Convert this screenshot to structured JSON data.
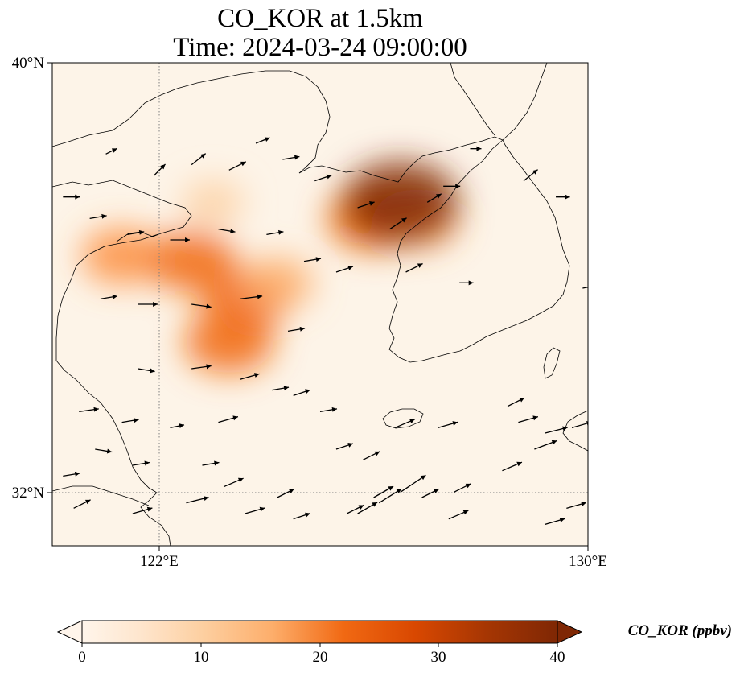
{
  "title": {
    "line1": "CO_KOR at 1.5km",
    "line2": "Time: 2024-03-24 09:00:00"
  },
  "axes": {
    "lat_ticks": [
      "40°N",
      "32°N"
    ],
    "lon_ticks": [
      "122°E",
      "130°E"
    ],
    "lon_range": [
      120,
      130
    ],
    "lat_range": [
      31,
      40
    ],
    "gridlines": "dotted at 122°E and 32°N"
  },
  "colorbar": {
    "label": "CO_KOR (ppbv)",
    "ticks": [
      "0",
      "10",
      "20",
      "30",
      "40"
    ],
    "min": 0,
    "max": 40,
    "extend": "both",
    "colormap": [
      "#fff5eb",
      "#fee6ce",
      "#fdd0a2",
      "#fdae6b",
      "#fd8d3c",
      "#f16913",
      "#d94801",
      "#a63603",
      "#7f2704"
    ]
  },
  "colors": {
    "background": "#fdf4e8",
    "coastline": "#000000",
    "gridline": "#7f7f7f",
    "arrow": "#000000"
  },
  "plumes": [
    {
      "lon": 121.3,
      "lat": 36.4,
      "value": 20
    },
    {
      "lon": 122.6,
      "lat": 36.3,
      "value": 24
    },
    {
      "lon": 123.6,
      "lat": 35.6,
      "value": 24
    },
    {
      "lon": 123.3,
      "lat": 34.8,
      "value": 25
    },
    {
      "lon": 124.2,
      "lat": 35.9,
      "value": 16
    },
    {
      "lon": 123.0,
      "lat": 37.4,
      "value": 10
    },
    {
      "lon": 126.0,
      "lat": 37.1,
      "value": 27
    },
    {
      "lon": 126.8,
      "lat": 37.1,
      "value": 22
    },
    {
      "lon": 126.5,
      "lat": 37.4,
      "value": 40
    }
  ],
  "wind_vectors": [
    [
      120.2,
      37.5,
      0.3,
      0
    ],
    [
      121.0,
      38.3,
      0.2,
      0.1
    ],
    [
      121.9,
      37.9,
      0.2,
      0.2
    ],
    [
      122.6,
      38.1,
      0.25,
      0.2
    ],
    [
      123.3,
      38.0,
      0.3,
      0.15
    ],
    [
      123.8,
      38.5,
      0.25,
      0.1
    ],
    [
      124.3,
      38.2,
      0.3,
      0.05
    ],
    [
      124.9,
      37.8,
      0.3,
      0.1
    ],
    [
      125.7,
      37.3,
      0.3,
      0.1
    ],
    [
      126.3,
      36.9,
      0.3,
      0.2
    ],
    [
      127.0,
      37.4,
      0.25,
      0.15
    ],
    [
      127.3,
      37.7,
      0.3,
      0
    ],
    [
      127.8,
      38.4,
      0.2,
      0
    ],
    [
      128.8,
      37.8,
      0.25,
      0.2
    ],
    [
      129.4,
      37.5,
      0.25,
      0
    ],
    [
      130.0,
      37.7,
      0.25,
      -0.05
    ],
    [
      130.0,
      38.2,
      0.2,
      0
    ],
    [
      120.7,
      37.1,
      0.3,
      0.05
    ],
    [
      121.4,
      36.8,
      0.3,
      0.05
    ],
    [
      122.2,
      36.7,
      0.35,
      0
    ],
    [
      123.1,
      36.9,
      0.3,
      -0.05
    ],
    [
      124.0,
      36.8,
      0.3,
      0.05
    ],
    [
      124.7,
      36.3,
      0.3,
      0.05
    ],
    [
      125.3,
      36.1,
      0.3,
      0.1
    ],
    [
      126.6,
      36.1,
      0.3,
      0.15
    ],
    [
      127.6,
      35.9,
      0.25,
      0
    ],
    [
      129.9,
      35.8,
      0.25,
      0.05
    ],
    [
      120.9,
      35.6,
      0.3,
      0.05
    ],
    [
      121.6,
      35.5,
      0.35,
      0
    ],
    [
      122.6,
      35.5,
      0.35,
      -0.05
    ],
    [
      123.5,
      35.6,
      0.4,
      0.05
    ],
    [
      124.4,
      35.0,
      0.3,
      0.05
    ],
    [
      121.6,
      34.3,
      0.3,
      -0.05
    ],
    [
      122.6,
      34.3,
      0.35,
      0.05
    ],
    [
      123.5,
      34.1,
      0.35,
      0.1
    ],
    [
      124.5,
      33.8,
      0.3,
      0.1
    ],
    [
      120.5,
      33.5,
      0.35,
      0.05
    ],
    [
      121.3,
      33.3,
      0.3,
      0.05
    ],
    [
      122.2,
      33.2,
      0.25,
      0.05
    ],
    [
      123.1,
      33.3,
      0.35,
      0.1
    ],
    [
      124.1,
      33.9,
      0.3,
      0.05
    ],
    [
      125.0,
      33.5,
      0.3,
      0.05
    ],
    [
      125.3,
      32.8,
      0.3,
      0.1
    ],
    [
      125.8,
      32.6,
      0.3,
      0.15
    ],
    [
      120.8,
      32.8,
      0.3,
      -0.05
    ],
    [
      121.5,
      32.5,
      0.3,
      0.05
    ],
    [
      122.8,
      32.5,
      0.3,
      0.05
    ],
    [
      123.2,
      32.1,
      0.35,
      0.15
    ],
    [
      124.2,
      31.9,
      0.3,
      0.15
    ],
    [
      125.5,
      31.6,
      0.3,
      0.15
    ],
    [
      126.0,
      31.9,
      0.35,
      0.2
    ],
    [
      126.9,
      31.9,
      0.3,
      0.15
    ],
    [
      127.5,
      32.0,
      0.3,
      0.15
    ],
    [
      120.2,
      32.3,
      0.3,
      0.05
    ],
    [
      120.4,
      31.7,
      0.3,
      0.15
    ],
    [
      121.5,
      31.6,
      0.35,
      0.1
    ],
    [
      122.5,
      31.8,
      0.4,
      0.1
    ],
    [
      123.6,
      31.6,
      0.35,
      0.1
    ],
    [
      124.5,
      31.5,
      0.3,
      0.1
    ],
    [
      125.7,
      31.6,
      0.35,
      0.2
    ],
    [
      126.1,
      31.8,
      0.4,
      0.25
    ],
    [
      126.5,
      32.0,
      0.45,
      0.3
    ],
    [
      127.4,
      31.5,
      0.35,
      0.15
    ],
    [
      128.4,
      32.4,
      0.35,
      0.15
    ],
    [
      129.0,
      32.8,
      0.4,
      0.15
    ],
    [
      128.7,
      33.3,
      0.35,
      0.1
    ],
    [
      127.2,
      33.2,
      0.35,
      0.1
    ],
    [
      126.4,
      33.2,
      0.35,
      0.15
    ],
    [
      129.2,
      33.1,
      0.4,
      0.1
    ],
    [
      129.7,
      33.2,
      0.35,
      0.1
    ],
    [
      130.0,
      33.5,
      0.3,
      0.1
    ],
    [
      129.2,
      31.4,
      0.35,
      0.1
    ],
    [
      128.5,
      33.6,
      0.3,
      0.15
    ],
    [
      129.6,
      31.7,
      0.35,
      0.1
    ]
  ]
}
